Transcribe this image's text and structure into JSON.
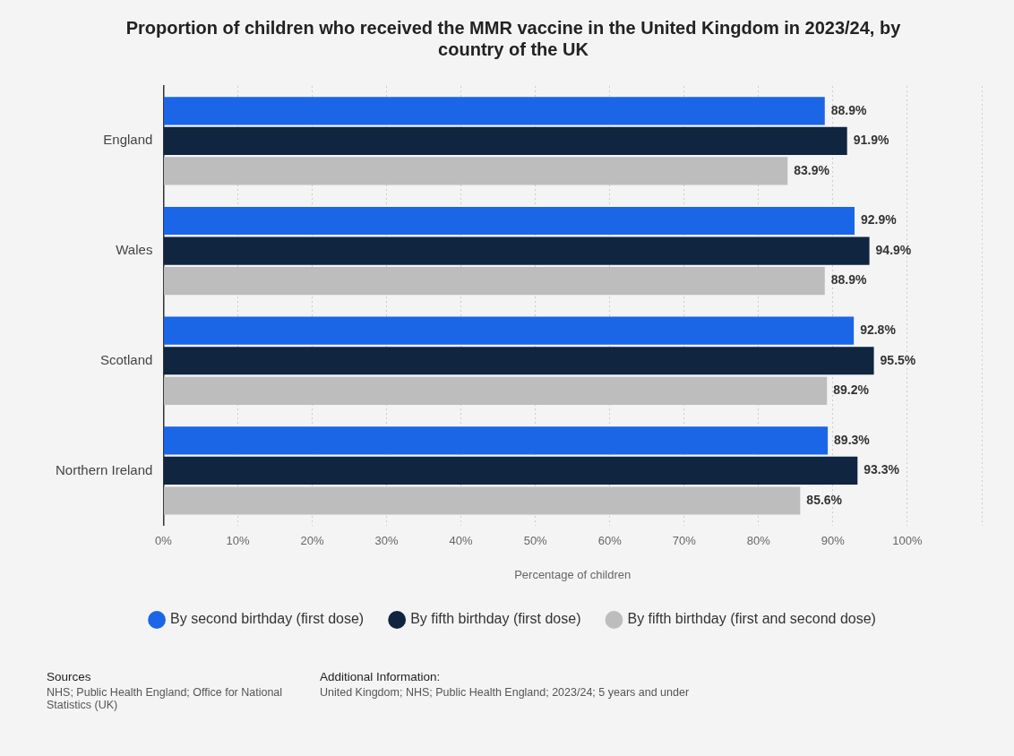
{
  "chart_data": {
    "type": "bar",
    "orientation": "horizontal",
    "title": "Proportion of children who received the MMR vaccine in the United Kingdom in 2023/24, by country of the UK",
    "xlabel": "Percentage of children",
    "categories": [
      "England",
      "Wales",
      "Scotland",
      "Northern Ireland"
    ],
    "series": [
      {
        "name": "By second birthday (first dose)",
        "color": "#1a66e6",
        "values": [
          88.9,
          92.9,
          92.8,
          89.3
        ],
        "value_labels": [
          "88.9%",
          "92.9%",
          "92.8%",
          "89.3%"
        ]
      },
      {
        "name": "By fifth birthday (first dose)",
        "color": "#0f2540",
        "values": [
          91.9,
          94.9,
          95.5,
          93.3
        ],
        "value_labels": [
          "91.9%",
          "94.9%",
          "95.5%",
          "93.3%"
        ]
      },
      {
        "name": "By fifth birthday (first and second dose)",
        "color": "#bdbdbd",
        "values": [
          83.9,
          88.9,
          89.2,
          85.6
        ],
        "value_labels": [
          "83.9%",
          "88.9%",
          "89.2%",
          "85.6%"
        ]
      }
    ],
    "xlim": [
      0,
      110
    ],
    "xticks": [
      {
        "value": 0,
        "label": "0%"
      },
      {
        "value": 10,
        "label": "10%"
      },
      {
        "value": 20,
        "label": "20%"
      },
      {
        "value": 30,
        "label": "30%"
      },
      {
        "value": 40,
        "label": "40%"
      },
      {
        "value": 50,
        "label": "50%"
      },
      {
        "value": 60,
        "label": "60%"
      },
      {
        "value": 70,
        "label": "70%"
      },
      {
        "value": 80,
        "label": "80%"
      },
      {
        "value": 90,
        "label": "90%"
      },
      {
        "value": 100,
        "label": "100%"
      },
      {
        "value": 110,
        "label": null
      }
    ],
    "grid": "x",
    "legend": "bottom",
    "marker": "circle",
    "annotations": [
      "Sources",
      "NHS; Public Health England; Office for National Statistics (UK)",
      "Additional Information:",
      "United Kingdom; NHS; Public Health England; 2023/24; 5 years and under"
    ]
  }
}
